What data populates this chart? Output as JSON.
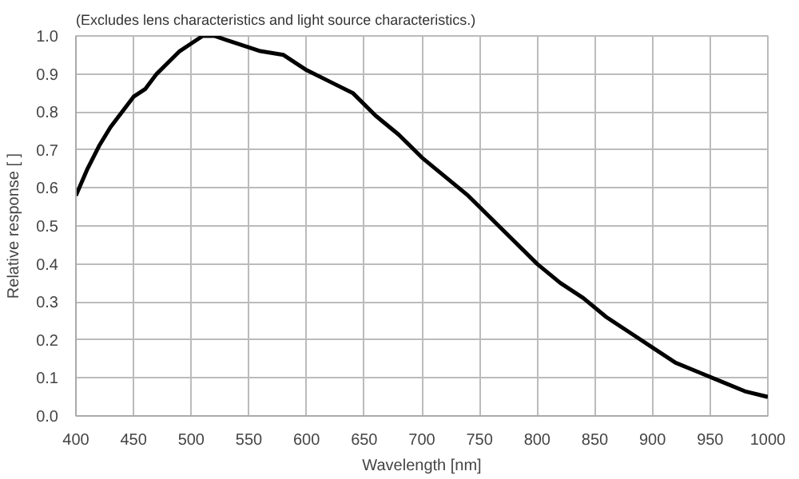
{
  "chart_data": {
    "type": "line",
    "title": "(Excludes lens characteristics and light source characteristics.)",
    "xlabel": "Wavelength [nm]",
    "ylabel": "Relative response [ ]",
    "x": [
      400,
      410,
      420,
      430,
      440,
      450,
      460,
      470,
      480,
      490,
      500,
      510,
      520,
      530,
      540,
      550,
      560,
      580,
      600,
      620,
      640,
      660,
      680,
      700,
      720,
      740,
      760,
      780,
      800,
      820,
      840,
      860,
      880,
      900,
      920,
      940,
      960,
      980,
      1000
    ],
    "series": [
      {
        "color": "#000000",
        "values": [
          0.58,
          0.65,
          0.71,
          0.76,
          0.8,
          0.84,
          0.86,
          0.9,
          0.93,
          0.96,
          0.98,
          1.0,
          1.0,
          0.99,
          0.98,
          0.97,
          0.96,
          0.95,
          0.91,
          0.88,
          0.85,
          0.79,
          0.74,
          0.68,
          0.63,
          0.58,
          0.52,
          0.46,
          0.4,
          0.35,
          0.31,
          0.26,
          0.22,
          0.18,
          0.14,
          0.115,
          0.09,
          0.065,
          0.05
        ]
      }
    ],
    "xlim": [
      400,
      1000
    ],
    "ylim": [
      0,
      1.0
    ],
    "xticks": [
      400,
      450,
      500,
      550,
      600,
      650,
      700,
      750,
      800,
      850,
      900,
      950,
      1000
    ],
    "yticks": [
      {
        "value": 0,
        "label": "0.0"
      },
      {
        "value": 0.1,
        "label": "0.1"
      },
      {
        "value": 0.2,
        "label": "0.2"
      },
      {
        "value": 0.3,
        "label": "0.3"
      },
      {
        "value": 0.4,
        "label": "0.4"
      },
      {
        "value": 0.5,
        "label": "0.5"
      },
      {
        "value": 0.6,
        "label": "0.6"
      },
      {
        "value": 0.7,
        "label": "0.7"
      },
      {
        "value": 0.8,
        "label": "0.8"
      },
      {
        "value": 0.9,
        "label": "0.9"
      },
      {
        "value": 1.0,
        "label": "1.0"
      }
    ],
    "grid": true
  }
}
